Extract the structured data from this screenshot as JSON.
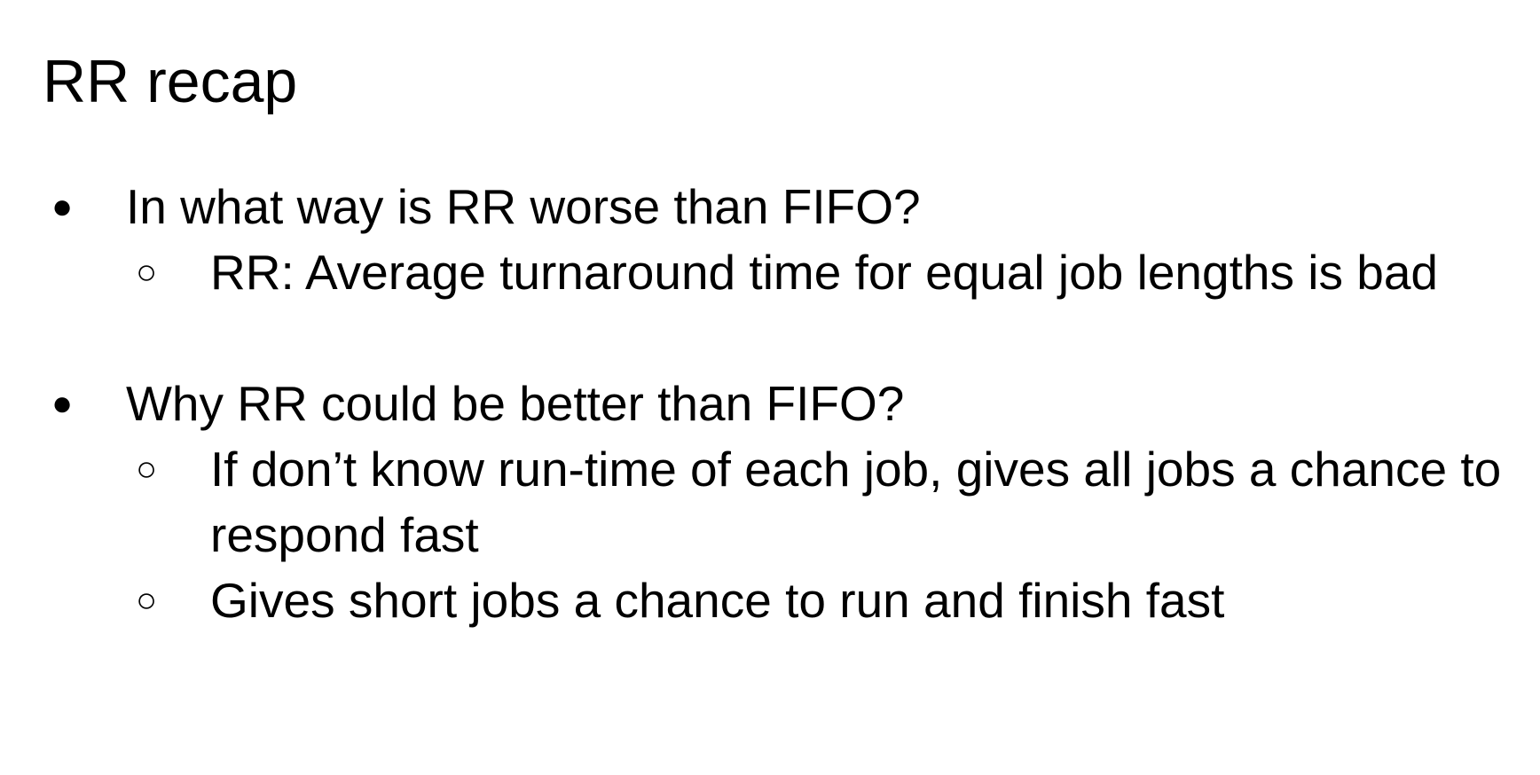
{
  "slide": {
    "title": "RR recap",
    "bullets": [
      {
        "text": "In what way is RR worse than FIFO?",
        "sub": [
          "RR: Average turnaround time for equal job lengths is bad"
        ]
      },
      {
        "text": "Why RR could be better than FIFO?",
        "sub": [
          "If don’t know run-time of each job, gives all jobs a chance to respond fast",
          "Gives short jobs a chance to run and finish fast"
        ]
      }
    ],
    "markers": {
      "level1": "●",
      "level2": "○"
    }
  }
}
